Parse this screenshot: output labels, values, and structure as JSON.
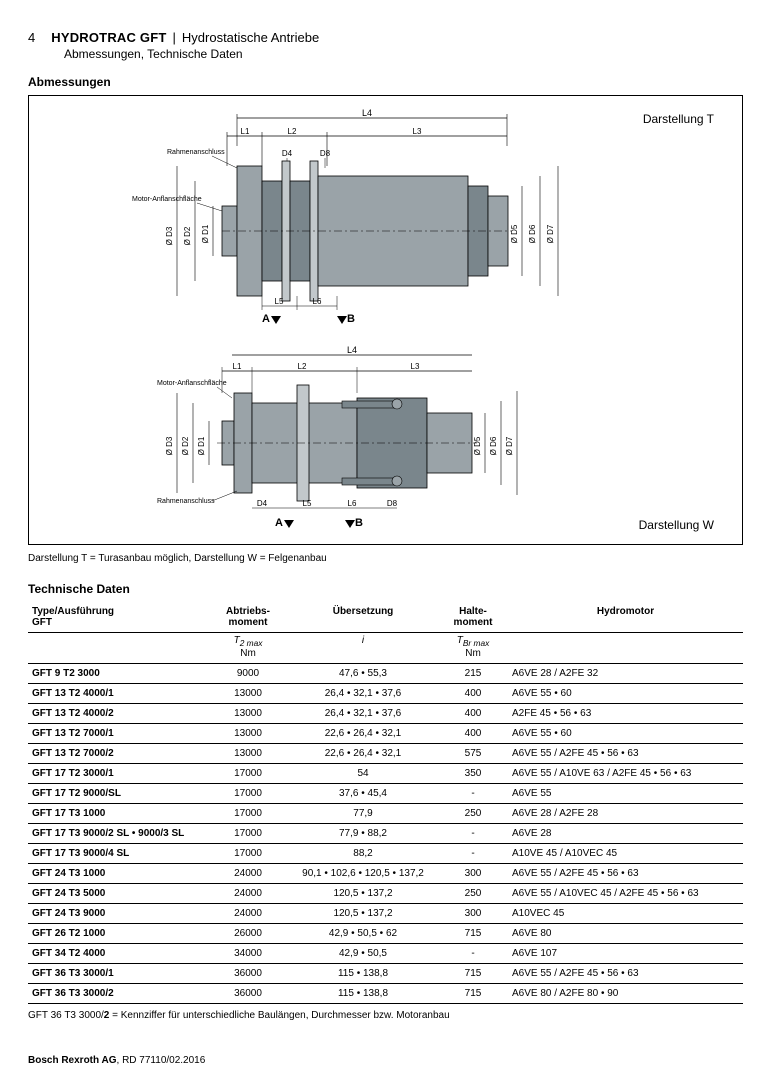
{
  "page": {
    "number": "4",
    "title_bold": "HYDROTRAC GFT",
    "title_sep": " | ",
    "title_rest": "Hydrostatische Antriebe",
    "subtitle": "Abmessungen, Technische Daten"
  },
  "section_abm": "Abmessungen",
  "diagram": {
    "label_t": "Darstellung T",
    "label_w": "Darstellung W",
    "labels": {
      "L1": "L1",
      "L2": "L2",
      "L3": "L3",
      "L4": "L4",
      "L5": "L5",
      "L6": "L6",
      "D1": "Ø D1",
      "D2": "Ø D2",
      "D3": "Ø D3",
      "D4": "D4",
      "D5": "Ø D5",
      "D6": "Ø D6",
      "D7": "Ø D7",
      "D8": "D8",
      "A": "A",
      "B": "B",
      "rahmen": "Rahmenanschluss",
      "motor": "Motor-Anflanschfläche"
    },
    "caption": "Darstellung T = Turasanbau möglich, Darstellung W = Felgenanbau",
    "colors": {
      "body": "#9aa3a8",
      "body_dark": "#7a868c",
      "flange": "#c2c8cb",
      "line": "#000000",
      "thinline": "#555555"
    }
  },
  "section_tech": "Technische Daten",
  "table": {
    "headers": {
      "type": "Type/Ausführung",
      "type2": "GFT",
      "abt": "Abtriebs-",
      "abt2": "moment",
      "ueb": "Übersetzung",
      "halte": "Halte-",
      "halte2": "moment",
      "hydro": "Hydromotor"
    },
    "sub": {
      "t2max": "T",
      "t2max_sub": "2 max",
      "i": "i",
      "tbrmax": "T",
      "tbrmax_sub": "Br max"
    },
    "units": {
      "nm1": "Nm",
      "nm2": "Nm"
    },
    "rows": [
      {
        "type": "GFT 9 T2 3000",
        "abt": "9000",
        "ueb": "47,6 • 55,3",
        "halte": "215",
        "hydro": "A6VE 28 / A2FE 32"
      },
      {
        "type": "GFT 13 T2 4000/1",
        "abt": "13000",
        "ueb": "26,4 • 32,1 • 37,6",
        "halte": "400",
        "hydro": "A6VE 55 • 60"
      },
      {
        "type": "GFT 13 T2 4000/2",
        "abt": "13000",
        "ueb": "26,4 • 32,1 • 37,6",
        "halte": "400",
        "hydro": "A2FE 45 • 56 • 63"
      },
      {
        "type": "GFT 13 T2 7000/1",
        "abt": "13000",
        "ueb": "22,6 • 26,4 • 32,1",
        "halte": "400",
        "hydro": "A6VE 55 • 60"
      },
      {
        "type": "GFT 13 T2 7000/2",
        "abt": "13000",
        "ueb": "22,6 • 26,4 • 32,1",
        "halte": "575",
        "hydro": "A6VE 55 / A2FE 45 • 56 • 63"
      },
      {
        "type": "GFT 17 T2 3000/1",
        "abt": "17000",
        "ueb": "54",
        "halte": "350",
        "hydro": "A6VE 55 / A10VE 63 / A2FE 45 • 56 • 63"
      },
      {
        "type": "GFT 17 T2 9000/SL",
        "abt": "17000",
        "ueb": "37,6 • 45,4",
        "halte": "-",
        "hydro": "A6VE 55"
      },
      {
        "type": "GFT 17 T3 1000",
        "abt": "17000",
        "ueb": "77,9",
        "halte": "250",
        "hydro": "A6VE 28 / A2FE 28"
      },
      {
        "type": "GFT 17 T3 9000/2 SL • 9000/3 SL",
        "abt": "17000",
        "ueb": "77,9 • 88,2",
        "halte": "-",
        "hydro": "A6VE 28"
      },
      {
        "type": "GFT 17 T3 9000/4 SL",
        "abt": "17000",
        "ueb": "88,2",
        "halte": "-",
        "hydro": "A10VE 45 / A10VEC 45"
      },
      {
        "type": "GFT 24 T3 1000",
        "abt": "24000",
        "ueb": "90,1 • 102,6 • 120,5 • 137,2",
        "halte": "300",
        "hydro": "A6VE 55 / A2FE 45 • 56 • 63"
      },
      {
        "type": "GFT 24 T3 5000",
        "abt": "24000",
        "ueb": "120,5 • 137,2",
        "halte": "250",
        "hydro": "A6VE 55 / A10VEC 45 / A2FE 45 • 56 • 63"
      },
      {
        "type": "GFT 24 T3 9000",
        "abt": "24000",
        "ueb": "120,5 • 137,2",
        "halte": "300",
        "hydro": "A10VEC 45"
      },
      {
        "type": "GFT 26 T2 1000",
        "abt": "26000",
        "ueb": "42,9 • 50,5 • 62",
        "halte": "715",
        "hydro": "A6VE 80"
      },
      {
        "type": "GFT 34 T2 4000",
        "abt": "34000",
        "ueb": "42,9 • 50,5",
        "halte": "-",
        "hydro": "A6VE 107"
      },
      {
        "type": "GFT 36 T3 3000/1",
        "abt": "36000",
        "ueb": "115 • 138,8",
        "halte": "715",
        "hydro": "A6VE 55 / A2FE 45 • 56 • 63"
      },
      {
        "type": "GFT 36 T3 3000/2",
        "abt": "36000",
        "ueb": "115 • 138,8",
        "halte": "715",
        "hydro": "A6VE 80 / A2FE 80 • 90"
      }
    ],
    "footnote_a": "GFT 36 T3 3000/",
    "footnote_b": "2",
    "footnote_c": " = Kennziffer für unterschiedliche Baulängen, Durchmesser bzw. Motoranbau"
  },
  "footer": {
    "company": "Bosch Rexroth AG",
    "doc": ", RD 77110/02.2016"
  }
}
